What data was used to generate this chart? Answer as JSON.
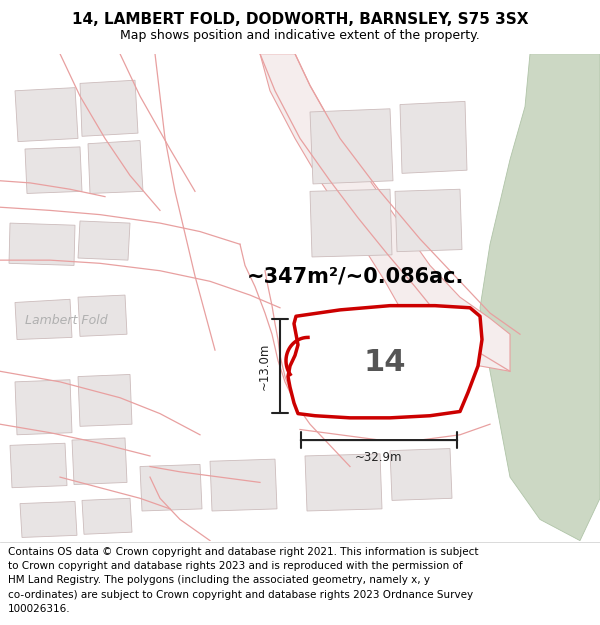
{
  "title": "14, LAMBERT FOLD, DODWORTH, BARNSLEY, S75 3SX",
  "subtitle": "Map shows position and indicative extent of the property.",
  "footer_lines": [
    "Contains OS data © Crown copyright and database right 2021. This information is subject",
    "to Crown copyright and database rights 2023 and is reproduced with the permission of",
    "HM Land Registry. The polygons (including the associated geometry, namely x, y",
    "co-ordinates) are subject to Crown copyright and database rights 2023 Ordnance Survey",
    "100026316."
  ],
  "area_label": "~347m²/~0.086ac.",
  "number_label": "14",
  "dim_width": "~32.9m",
  "dim_height": "~13.0m",
  "map_bg": "#f7f4f4",
  "road_color": "#e8a0a0",
  "road_fill": "#f5eded",
  "building_fill": "#e8e4e4",
  "building_outline": "#ccbcbc",
  "green_color": "#ccd8c4",
  "green_edge": "#b0c4a8",
  "prop_fill": "#ffffff",
  "prop_stroke": "#cc0000",
  "dim_color": "#222222",
  "lambert_fold_color": "#b0b0b0",
  "title_fontsize": 11,
  "subtitle_fontsize": 9,
  "footer_fontsize": 7.5,
  "area_fontsize": 15,
  "number_fontsize": 22
}
